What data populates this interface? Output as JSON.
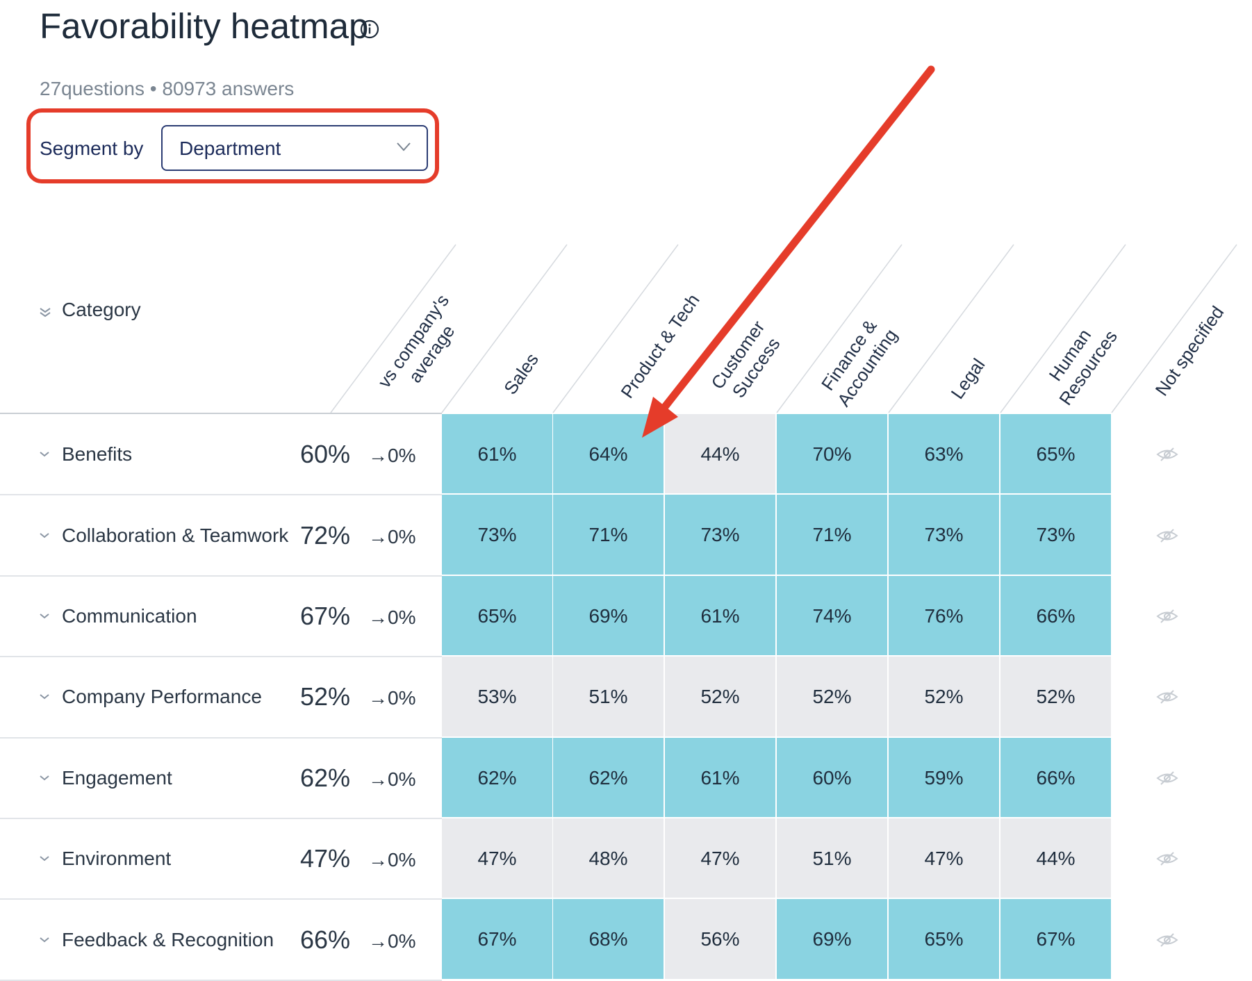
{
  "title": "Favorability heatmap",
  "icons": {
    "info": "info-icon",
    "dropdown": "chevron-down-icon",
    "collapse": "chevron-down-icon",
    "hidden": "eye-off-icon"
  },
  "summary": "27questions • 80973 answers",
  "segment": {
    "label": "Segment by",
    "value": "Department"
  },
  "category_header": "Category",
  "columns": [
    {
      "lines": [
        "vs company's",
        "average"
      ]
    },
    {
      "lines": [
        "Sales"
      ]
    },
    {
      "lines": [
        "Product & Tech"
      ]
    },
    {
      "lines": [
        "Customer",
        "Success"
      ]
    },
    {
      "lines": [
        "Finance &",
        "Accounting"
      ]
    },
    {
      "lines": [
        "Legal"
      ]
    },
    {
      "lines": [
        "Human",
        "Resources"
      ]
    },
    {
      "lines": [
        "Not specified"
      ]
    }
  ],
  "rows": [
    {
      "label": "Benefits",
      "overall": "60%",
      "delta": "→0%",
      "values": [
        "61%",
        "64%",
        "44%",
        "70%",
        "63%",
        "65%"
      ],
      "highlight": [
        true,
        true,
        false,
        true,
        true,
        true
      ]
    },
    {
      "label": "Collaboration & Teamwork",
      "overall": "72%",
      "delta": "→0%",
      "values": [
        "73%",
        "71%",
        "73%",
        "71%",
        "73%",
        "73%"
      ],
      "highlight": [
        true,
        true,
        true,
        true,
        true,
        true
      ]
    },
    {
      "label": "Communication",
      "overall": "67%",
      "delta": "→0%",
      "values": [
        "65%",
        "69%",
        "61%",
        "74%",
        "76%",
        "66%"
      ],
      "highlight": [
        true,
        true,
        true,
        true,
        true,
        true
      ]
    },
    {
      "label": "Company Performance",
      "overall": "52%",
      "delta": "→0%",
      "values": [
        "53%",
        "51%",
        "52%",
        "52%",
        "52%",
        "52%"
      ],
      "highlight": [
        false,
        false,
        false,
        false,
        false,
        false
      ]
    },
    {
      "label": "Engagement",
      "overall": "62%",
      "delta": "→0%",
      "values": [
        "62%",
        "62%",
        "61%",
        "60%",
        "59%",
        "66%"
      ],
      "highlight": [
        true,
        true,
        true,
        true,
        true,
        true
      ]
    },
    {
      "label": "Environment",
      "overall": "47%",
      "delta": "→0%",
      "values": [
        "47%",
        "48%",
        "47%",
        "51%",
        "47%",
        "44%"
      ],
      "highlight": [
        false,
        false,
        false,
        false,
        false,
        false
      ]
    },
    {
      "label": "Feedback & Recognition",
      "overall": "66%",
      "delta": "→0%",
      "values": [
        "67%",
        "68%",
        "56%",
        "69%",
        "65%",
        "67%"
      ],
      "highlight": [
        true,
        true,
        false,
        true,
        true,
        true
      ]
    }
  ],
  "colors": {
    "favorable": "#8ad3e1",
    "neutral": "#e9eaed",
    "annotation": "#e53c2a"
  }
}
